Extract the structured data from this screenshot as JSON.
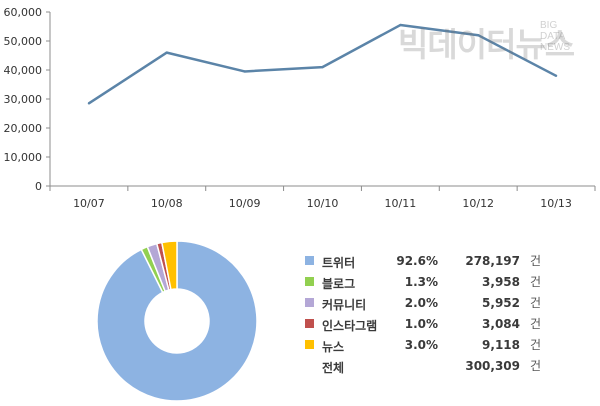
{
  "chart_data": [
    {
      "type": "line",
      "x": [
        "10/07",
        "10/08",
        "10/09",
        "10/10",
        "10/11",
        "10/12",
        "10/13"
      ],
      "series": [
        {
          "values": [
            28500,
            46000,
            39500,
            41000,
            55500,
            52000,
            38000
          ]
        }
      ],
      "ylim": [
        0,
        60000
      ],
      "yticks": [
        "0",
        "10,000",
        "20,000",
        "30,000",
        "40,000",
        "50,000",
        "60,000"
      ],
      "grid": false,
      "color": "#5b84a8"
    },
    {
      "type": "pie",
      "donut": true,
      "slices": [
        {
          "label": "트위터",
          "percent": "92.6%",
          "count": "278,197",
          "value": 278197,
          "color": "#8db3e2"
        },
        {
          "label": "블로그",
          "percent": "1.3%",
          "count": "3,958",
          "value": 3958,
          "color": "#92d050"
        },
        {
          "label": "커뮤니티",
          "percent": "2.0%",
          "count": "5,952",
          "value": 5952,
          "color": "#b4a7d6"
        },
        {
          "label": "인스타그램",
          "percent": "1.0%",
          "count": "3,084",
          "value": 3084,
          "color": "#c0504d"
        },
        {
          "label": "뉴스",
          "percent": "3.0%",
          "count": "9,118",
          "value": 9118,
          "color": "#ffc000"
        }
      ],
      "total": {
        "label": "전체",
        "count": "300,309"
      },
      "unit": "건"
    }
  ],
  "watermark": {
    "korean": "빅데이터뉴스",
    "english": [
      "BIG",
      "DATA",
      "NEWS"
    ]
  }
}
